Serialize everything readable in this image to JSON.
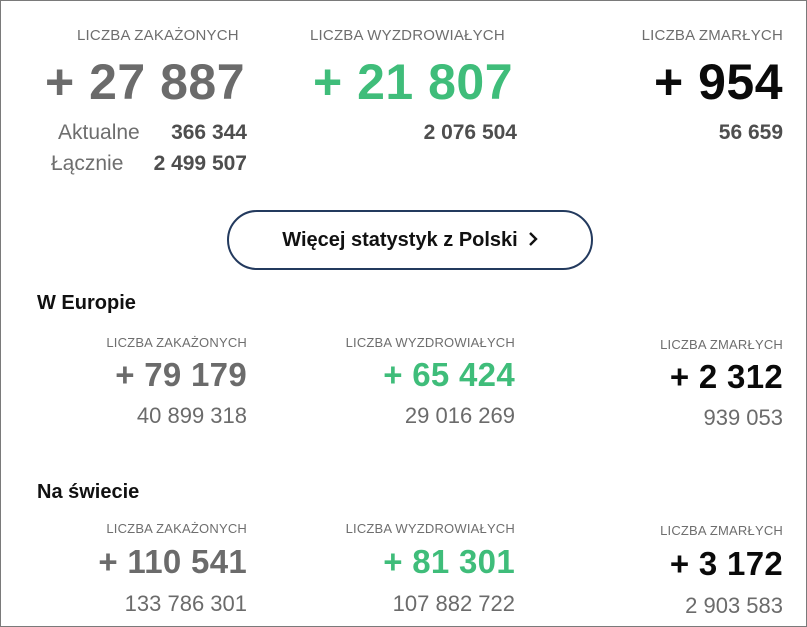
{
  "poland": {
    "infected": {
      "label": "LICZBA ZAKAŻONYCH",
      "delta": "+ 27 887",
      "current_label": "Aktualne",
      "current_value": "366 344",
      "total_label": "Łącznie",
      "total_value": "2 499 507"
    },
    "recovered": {
      "label": "LICZBA WYZDROWIAŁYCH",
      "delta": "+ 21 807",
      "total": "2 076 504"
    },
    "deaths": {
      "label": "LICZBA ZMARŁYCH",
      "delta": "+ 954",
      "total": "56 659"
    }
  },
  "more_button": {
    "label": "Więcej statystyk z Polski",
    "icon": "chevron-right-icon"
  },
  "europe": {
    "heading": "W Europie",
    "infected": {
      "label": "LICZBA ZAKAŻONYCH",
      "delta": "+ 79 179",
      "total": "40 899 318"
    },
    "recovered": {
      "label": "LICZBA WYZDROWIAŁYCH",
      "delta": "+ 65 424",
      "total": "29 016 269"
    },
    "deaths": {
      "label": "LICZBA ZMARŁYCH",
      "delta": "+ 2 312",
      "total": "939 053"
    }
  },
  "world": {
    "heading": "Na świecie",
    "infected": {
      "label": "LICZBA ZAKAŻONYCH",
      "delta": "+ 110 541",
      "total": "133 786 301"
    },
    "recovered": {
      "label": "LICZBA WYZDROWIAŁYCH",
      "delta": "+ 81 301",
      "total": "107 882 722"
    },
    "deaths": {
      "label": "LICZBA ZMARŁYCH",
      "delta": "+ 3 172",
      "total": "2 903 583"
    }
  },
  "colors": {
    "recovered_accent": "#3fbd7a",
    "infected_text": "#6b6b6b",
    "deaths_text": "#0a0a0a",
    "button_border": "#233a5e"
  }
}
